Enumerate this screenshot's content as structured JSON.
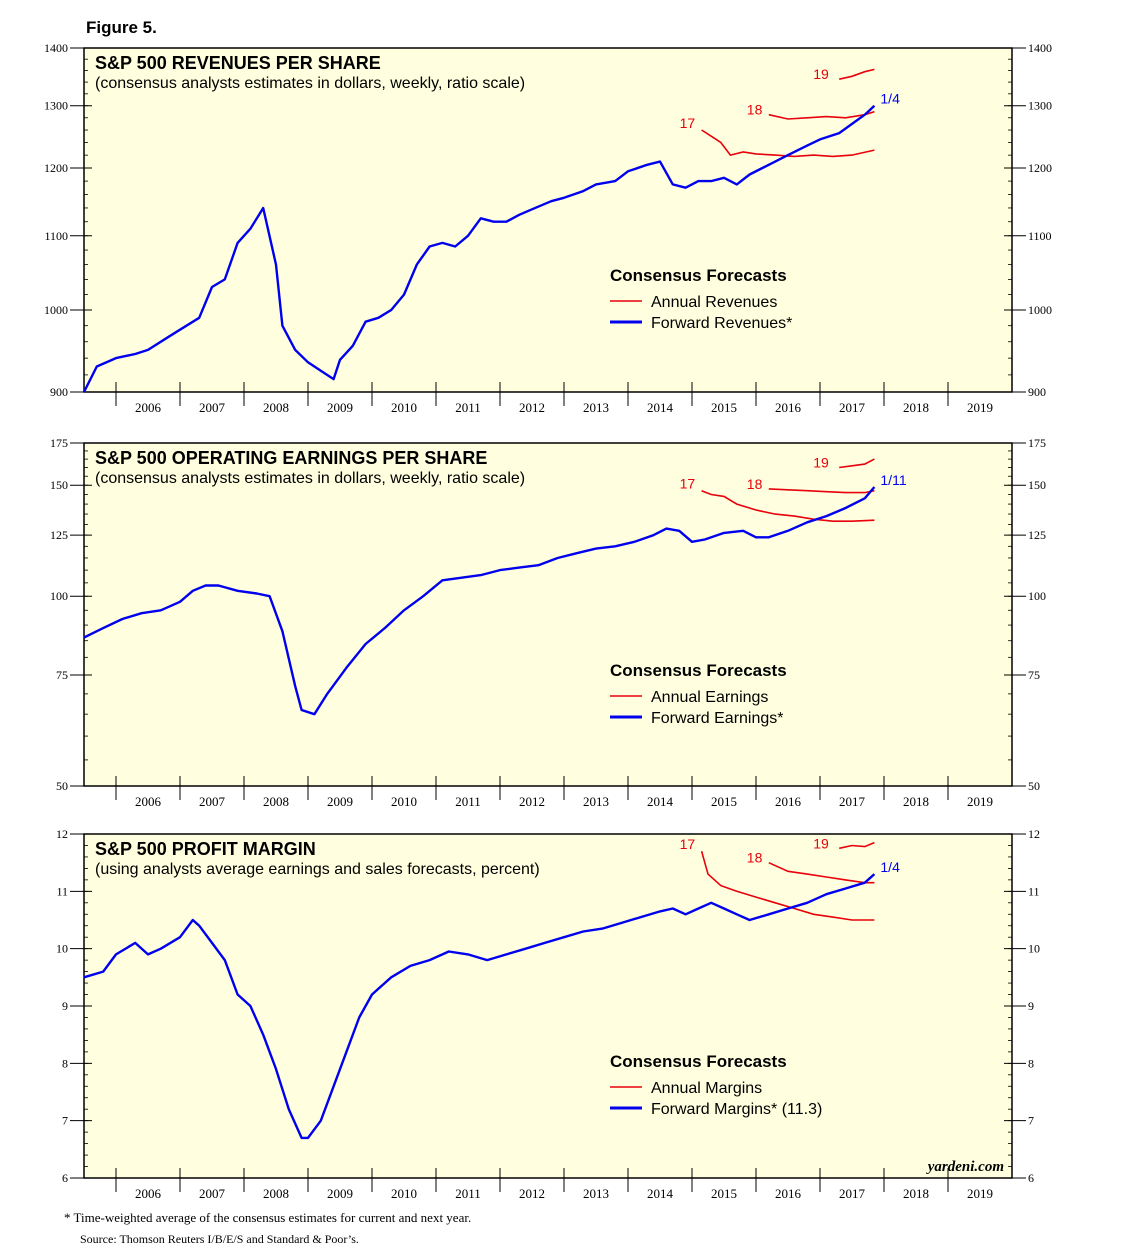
{
  "figure_label": "Figure 5.",
  "footnote": "*  Time-weighted average of the consensus estimates for current and next year.",
  "source": "Source: Thomson Reuters I/B/E/S and Standard & Poor’s.",
  "watermark": "yardeni.com",
  "colors": {
    "annual": "#e8000b",
    "forward": "#0000ee",
    "panel_bg": "#ffffe0"
  },
  "chart_data": [
    {
      "type": "line",
      "scale": "log",
      "title": "S&P 500 REVENUES PER SHARE",
      "subtitle": "(consensus analysts estimates in dollars, weekly, ratio scale)",
      "ylim": [
        900,
        1400
      ],
      "yticks": [
        900,
        1000,
        1100,
        1200,
        1300,
        1400
      ],
      "ytick_labels": [
        "900",
        "1000",
        "1100",
        "1200",
        "1300",
        "1400"
      ],
      "xlim": [
        2005.5,
        2020.0
      ],
      "xtick_labels": [
        "2006",
        "2007",
        "2008",
        "2009",
        "2010",
        "2011",
        "2012",
        "2013",
        "2014",
        "2015",
        "2016",
        "2017",
        "2018",
        "2019"
      ],
      "legend": {
        "title": "Consensus Forecasts",
        "annual": "Annual Revenues",
        "forward": "Forward Revenues*"
      },
      "annotations": [
        {
          "text": "17",
          "series": "annual"
        },
        {
          "text": "18",
          "series": "annual"
        },
        {
          "text": "19",
          "series": "annual"
        },
        {
          "text": "1/4",
          "series": "forward"
        }
      ],
      "forward": {
        "x": [
          2005.5,
          2005.7,
          2006.0,
          2006.3,
          2006.5,
          2006.8,
          2007.0,
          2007.3,
          2007.5,
          2007.7,
          2007.9,
          2008.1,
          2008.3,
          2008.5,
          2008.6,
          2008.8,
          2009.0,
          2009.2,
          2009.4,
          2009.5,
          2009.7,
          2009.9,
          2010.1,
          2010.3,
          2010.5,
          2010.7,
          2010.9,
          2011.1,
          2011.3,
          2011.5,
          2011.7,
          2011.9,
          2012.1,
          2012.3,
          2012.5,
          2012.8,
          2013.0,
          2013.3,
          2013.5,
          2013.8,
          2014.0,
          2014.3,
          2014.5,
          2014.7,
          2014.9,
          2015.1,
          2015.3,
          2015.5,
          2015.7,
          2015.9,
          2016.1,
          2016.3,
          2016.5,
          2016.8,
          2017.0,
          2017.3,
          2017.5,
          2017.7,
          2017.8,
          2017.85
        ],
        "y": [
          900,
          930,
          940,
          945,
          950,
          965,
          975,
          990,
          1030,
          1040,
          1090,
          1110,
          1140,
          1060,
          980,
          950,
          935,
          925,
          915,
          938,
          955,
          985,
          990,
          1000,
          1020,
          1060,
          1085,
          1090,
          1085,
          1100,
          1125,
          1120,
          1120,
          1130,
          1138,
          1150,
          1155,
          1165,
          1175,
          1180,
          1195,
          1205,
          1210,
          1175,
          1170,
          1180,
          1180,
          1185,
          1175,
          1190,
          1200,
          1210,
          1220,
          1235,
          1245,
          1255,
          1270,
          1285,
          1295,
          1300
        ]
      },
      "annual": [
        {
          "label": "17",
          "x": [
            2015.15,
            2015.3,
            2015.45,
            2015.6,
            2015.8,
            2016.0,
            2016.3,
            2016.6,
            2016.9,
            2017.2,
            2017.5,
            2017.85
          ],
          "y": [
            1260,
            1250,
            1240,
            1220,
            1225,
            1222,
            1220,
            1218,
            1220,
            1218,
            1220,
            1228
          ]
        },
        {
          "label": "18",
          "x": [
            2016.2,
            2016.5,
            2016.8,
            2017.1,
            2017.4,
            2017.7,
            2017.85
          ],
          "y": [
            1285,
            1278,
            1280,
            1282,
            1280,
            1285,
            1290
          ]
        },
        {
          "label": "19",
          "x": [
            2017.3,
            2017.5,
            2017.7,
            2017.85
          ],
          "y": [
            1345,
            1350,
            1358,
            1362
          ]
        }
      ]
    },
    {
      "type": "line",
      "scale": "log",
      "title": "S&P 500 OPERATING EARNINGS PER SHARE",
      "subtitle": "(consensus analysts estimates in dollars, weekly, ratio scale)",
      "ylim": [
        50,
        175
      ],
      "yticks": [
        50,
        75,
        100,
        125,
        150,
        175
      ],
      "ytick_labels": [
        "50",
        "75",
        "100",
        "125",
        "150",
        "175"
      ],
      "xlim": [
        2005.5,
        2020.0
      ],
      "xtick_labels": [
        "2006",
        "2007",
        "2008",
        "2009",
        "2010",
        "2011",
        "2012",
        "2013",
        "2014",
        "2015",
        "2016",
        "2017",
        "2018",
        "2019"
      ],
      "legend": {
        "title": "Consensus Forecasts",
        "annual": "Annual Earnings",
        "forward": "Forward Earnings*"
      },
      "annotations": [
        {
          "text": "17",
          "series": "annual"
        },
        {
          "text": "18",
          "series": "annual"
        },
        {
          "text": "19",
          "series": "annual"
        },
        {
          "text": "1/11",
          "series": "forward"
        }
      ],
      "forward": {
        "x": [
          2005.5,
          2005.8,
          2006.1,
          2006.4,
          2006.7,
          2007.0,
          2007.2,
          2007.4,
          2007.6,
          2007.9,
          2008.2,
          2008.4,
          2008.6,
          2008.8,
          2008.9,
          2009.1,
          2009.3,
          2009.6,
          2009.9,
          2010.2,
          2010.5,
          2010.8,
          2011.1,
          2011.4,
          2011.7,
          2012.0,
          2012.3,
          2012.6,
          2012.9,
          2013.2,
          2013.5,
          2013.8,
          2014.1,
          2014.4,
          2014.6,
          2014.8,
          2015.0,
          2015.2,
          2015.5,
          2015.8,
          2016.0,
          2016.2,
          2016.5,
          2016.8,
          2017.1,
          2017.4,
          2017.7,
          2017.85
        ],
        "y": [
          86,
          89,
          92,
          94,
          95,
          98,
          102,
          104,
          104,
          102,
          101,
          100,
          88,
          72,
          66,
          65,
          70,
          77,
          84,
          89,
          95,
          100,
          106,
          107,
          108,
          110,
          111,
          112,
          115,
          117,
          119,
          120,
          122,
          125,
          128,
          127,
          122,
          123,
          126,
          127,
          124,
          124,
          127,
          131,
          134,
          138,
          143,
          149
        ]
      },
      "annual": [
        {
          "label": "17",
          "x": [
            2015.15,
            2015.3,
            2015.5,
            2015.7,
            2016.0,
            2016.3,
            2016.6,
            2016.9,
            2017.2,
            2017.5,
            2017.85
          ],
          "y": [
            147,
            145,
            144,
            140,
            137,
            135,
            134,
            132.5,
            131.5,
            131.5,
            132
          ]
        },
        {
          "label": "18",
          "x": [
            2016.2,
            2016.5,
            2016.8,
            2017.1,
            2017.4,
            2017.7,
            2017.85
          ],
          "y": [
            148,
            147.5,
            147,
            146.5,
            146,
            146,
            147
          ]
        },
        {
          "label": "19",
          "x": [
            2017.3,
            2017.5,
            2017.7,
            2017.85
          ],
          "y": [
            160,
            161,
            162,
            165
          ]
        }
      ]
    },
    {
      "type": "line",
      "scale": "linear",
      "title": "S&P 500 PROFIT MARGIN",
      "subtitle": "(using analysts average earnings and sales forecasts, percent)",
      "ylim": [
        6,
        12
      ],
      "yticks": [
        6,
        7,
        8,
        9,
        10,
        11,
        12
      ],
      "ytick_labels": [
        "6",
        "7",
        "8",
        "9",
        "10",
        "11",
        "12"
      ],
      "xlim": [
        2005.5,
        2020.0
      ],
      "xtick_labels": [
        "2006",
        "2007",
        "2008",
        "2009",
        "2010",
        "2011",
        "2012",
        "2013",
        "2014",
        "2015",
        "2016",
        "2017",
        "2018",
        "2019"
      ],
      "legend": {
        "title": "Consensus Forecasts",
        "annual": "Annual Margins",
        "forward": "Forward Margins* (11.3)"
      },
      "annotations": [
        {
          "text": "17",
          "series": "annual"
        },
        {
          "text": "18",
          "series": "annual"
        },
        {
          "text": "19",
          "series": "annual"
        },
        {
          "text": "1/4",
          "series": "forward"
        }
      ],
      "forward": {
        "x": [
          2005.5,
          2005.8,
          2006.0,
          2006.3,
          2006.5,
          2006.7,
          2007.0,
          2007.2,
          2007.3,
          2007.5,
          2007.7,
          2007.9,
          2008.1,
          2008.3,
          2008.5,
          2008.7,
          2008.9,
          2009.0,
          2009.2,
          2009.4,
          2009.6,
          2009.8,
          2010.0,
          2010.3,
          2010.6,
          2010.9,
          2011.2,
          2011.5,
          2011.8,
          2012.1,
          2012.4,
          2012.7,
          2013.0,
          2013.3,
          2013.6,
          2013.9,
          2014.2,
          2014.5,
          2014.7,
          2014.9,
          2015.1,
          2015.3,
          2015.5,
          2015.7,
          2015.9,
          2016.2,
          2016.5,
          2016.8,
          2017.1,
          2017.4,
          2017.7,
          2017.85
        ],
        "y": [
          9.5,
          9.6,
          9.9,
          10.1,
          9.9,
          10.0,
          10.2,
          10.5,
          10.4,
          10.1,
          9.8,
          9.2,
          9.0,
          8.5,
          7.9,
          7.2,
          6.7,
          6.7,
          7.0,
          7.6,
          8.2,
          8.8,
          9.2,
          9.5,
          9.7,
          9.8,
          9.95,
          9.9,
          9.8,
          9.9,
          10.0,
          10.1,
          10.2,
          10.3,
          10.35,
          10.45,
          10.55,
          10.65,
          10.7,
          10.6,
          10.7,
          10.8,
          10.7,
          10.6,
          10.5,
          10.6,
          10.7,
          10.8,
          10.95,
          11.05,
          11.15,
          11.3
        ]
      },
      "annual": [
        {
          "label": "17",
          "x": [
            2015.15,
            2015.25,
            2015.45,
            2015.7,
            2016.0,
            2016.3,
            2016.6,
            2016.9,
            2017.2,
            2017.5,
            2017.85
          ],
          "y": [
            11.7,
            11.3,
            11.1,
            11.0,
            10.9,
            10.8,
            10.7,
            10.6,
            10.55,
            10.5,
            10.5
          ]
        },
        {
          "label": "18",
          "x": [
            2016.2,
            2016.5,
            2016.8,
            2017.1,
            2017.4,
            2017.7,
            2017.85
          ],
          "y": [
            11.5,
            11.35,
            11.3,
            11.25,
            11.2,
            11.15,
            11.15
          ]
        },
        {
          "label": "19",
          "x": [
            2017.3,
            2017.5,
            2017.7,
            2017.85
          ],
          "y": [
            11.75,
            11.8,
            11.78,
            11.85
          ]
        }
      ]
    }
  ]
}
